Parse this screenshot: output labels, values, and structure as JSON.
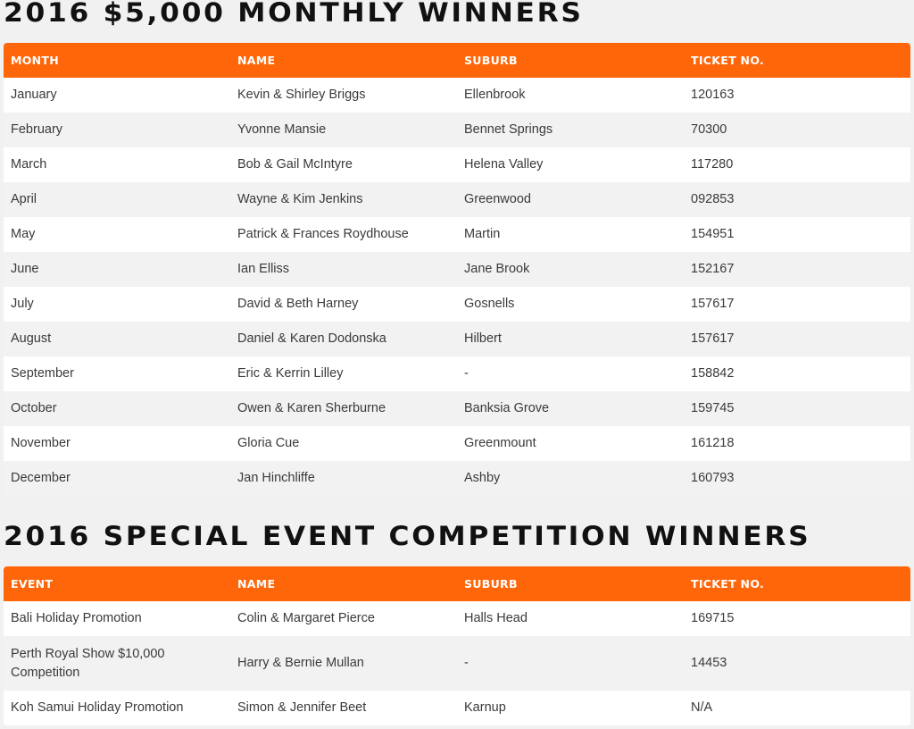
{
  "monthly": {
    "title": "2016 $5,000 MONTHLY WINNERS",
    "headers": [
      "MONTH",
      "NAME",
      "SUBURB",
      "TICKET NO."
    ],
    "rows": [
      [
        "January",
        "Kevin & Shirley Briggs",
        "Ellenbrook",
        "120163"
      ],
      [
        "February",
        "Yvonne Mansie",
        "Bennet Springs",
        "70300"
      ],
      [
        "March",
        "Bob & Gail McIntyre",
        "Helena Valley",
        "117280"
      ],
      [
        "April",
        "Wayne & Kim Jenkins",
        "Greenwood",
        "092853"
      ],
      [
        "May",
        "Patrick & Frances Roydhouse",
        "Martin",
        "154951"
      ],
      [
        "June",
        "Ian Elliss",
        "Jane Brook",
        "152167"
      ],
      [
        "July",
        "David & Beth Harney",
        "Gosnells",
        "157617"
      ],
      [
        "August",
        "Daniel & Karen Dodonska",
        "Hilbert",
        "157617"
      ],
      [
        "September",
        "Eric & Kerrin Lilley",
        "-",
        "158842"
      ],
      [
        "October",
        "Owen & Karen Sherburne",
        "Banksia Grove",
        "159745"
      ],
      [
        "November",
        "Gloria Cue",
        "Greenmount",
        "161218"
      ],
      [
        "December",
        "Jan Hinchliffe",
        "Ashby",
        "160793"
      ]
    ]
  },
  "special": {
    "title": "2016 SPECIAL EVENT COMPETITION WINNERS",
    "headers": [
      "EVENT",
      "NAME",
      "SUBURB",
      "TICKET NO."
    ],
    "rows": [
      [
        "Bali Holiday Promotion",
        "Colin & Margaret Pierce",
        "Halls Head",
        "169715"
      ],
      [
        "Perth Royal Show $10,000 Competition",
        "Harry & Bernie Mullan",
        "-",
        "14453"
      ],
      [
        "Koh Samui Holiday Promotion",
        "Simon & Jennifer Beet",
        "Karnup",
        "N/A"
      ]
    ]
  },
  "colors": {
    "accent": "#ff660a",
    "background": "#f1f1f1",
    "row_alt": "#f2f2f2"
  }
}
